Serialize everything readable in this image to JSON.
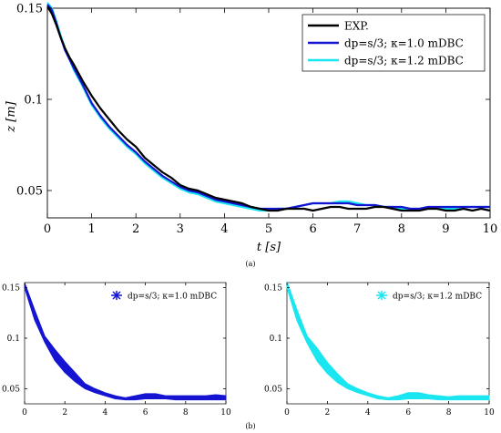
{
  "chart_data": [
    {
      "panel_label": "(a)",
      "type": "line",
      "xlabel": "t [s]",
      "ylabel": "z [m]",
      "xlim": [
        0,
        10
      ],
      "ylim": [
        0.035,
        0.15
      ],
      "x_ticks": [
        0,
        1,
        2,
        3,
        4,
        5,
        6,
        7,
        8,
        9,
        10
      ],
      "y_ticks": [
        0.05,
        0.1,
        0.15
      ],
      "y_tick_labels": [
        "0.05",
        "0.1",
        "0.15"
      ],
      "grid": false,
      "legend_position": "top-right",
      "series": [
        {
          "name": "EXP.",
          "color": "#000000",
          "x": [
            0,
            0.1,
            0.2,
            0.3,
            0.4,
            0.5,
            0.6,
            0.8,
            1.0,
            1.2,
            1.4,
            1.6,
            1.8,
            2.0,
            2.2,
            2.4,
            2.6,
            2.8,
            3.0,
            3.2,
            3.4,
            3.6,
            3.8,
            4.0,
            4.2,
            4.4,
            4.6,
            4.8,
            5.0,
            5.2,
            5.4,
            5.6,
            5.8,
            6.0,
            6.2,
            6.4,
            6.6,
            6.8,
            7.0,
            7.2,
            7.4,
            7.6,
            7.8,
            8.0,
            8.2,
            8.4,
            8.6,
            8.8,
            9.0,
            9.2,
            9.4,
            9.6,
            9.8,
            10.0
          ],
          "y": [
            0.151,
            0.147,
            0.141,
            0.134,
            0.128,
            0.123,
            0.119,
            0.11,
            0.102,
            0.095,
            0.089,
            0.083,
            0.078,
            0.074,
            0.068,
            0.064,
            0.06,
            0.057,
            0.053,
            0.051,
            0.05,
            0.048,
            0.046,
            0.045,
            0.044,
            0.043,
            0.041,
            0.04,
            0.039,
            0.039,
            0.04,
            0.04,
            0.04,
            0.039,
            0.04,
            0.041,
            0.041,
            0.04,
            0.04,
            0.04,
            0.041,
            0.041,
            0.04,
            0.039,
            0.039,
            0.039,
            0.04,
            0.04,
            0.039,
            0.039,
            0.04,
            0.039,
            0.04,
            0.039
          ]
        },
        {
          "name": "dp=s/3; κ=1.0 mDBC",
          "color": "#1414d2",
          "x": [
            0,
            0.1,
            0.2,
            0.3,
            0.4,
            0.5,
            0.6,
            0.8,
            1.0,
            1.2,
            1.4,
            1.6,
            1.8,
            2.0,
            2.2,
            2.4,
            2.6,
            2.8,
            3.0,
            3.2,
            3.4,
            3.6,
            3.8,
            4.0,
            4.2,
            4.4,
            4.6,
            4.8,
            5.0,
            5.2,
            5.4,
            5.6,
            5.8,
            6.0,
            6.2,
            6.4,
            6.6,
            6.8,
            7.0,
            7.2,
            7.4,
            7.6,
            7.8,
            8.0,
            8.2,
            8.4,
            8.6,
            8.8,
            9.0,
            9.2,
            9.4,
            9.6,
            9.8,
            10.0
          ],
          "y": [
            0.152,
            0.149,
            0.142,
            0.134,
            0.127,
            0.122,
            0.117,
            0.108,
            0.098,
            0.091,
            0.085,
            0.08,
            0.075,
            0.071,
            0.066,
            0.062,
            0.058,
            0.055,
            0.052,
            0.05,
            0.049,
            0.047,
            0.045,
            0.044,
            0.043,
            0.042,
            0.041,
            0.04,
            0.04,
            0.04,
            0.04,
            0.041,
            0.042,
            0.043,
            0.043,
            0.043,
            0.043,
            0.043,
            0.042,
            0.042,
            0.042,
            0.041,
            0.041,
            0.041,
            0.04,
            0.04,
            0.041,
            0.041,
            0.041,
            0.041,
            0.041,
            0.041,
            0.041,
            0.041
          ]
        },
        {
          "name": "dp=s/3; κ=1.2 mDBC",
          "color": "#19e6f0",
          "x": [
            0,
            0.1,
            0.2,
            0.3,
            0.4,
            0.5,
            0.6,
            0.8,
            1.0,
            1.2,
            1.4,
            1.6,
            1.8,
            2.0,
            2.2,
            2.4,
            2.6,
            2.8,
            3.0,
            3.2,
            3.4,
            3.6,
            3.8,
            4.0,
            4.2,
            4.4,
            4.6,
            4.8,
            5.0,
            5.2,
            5.4,
            5.6,
            5.8,
            6.0,
            6.2,
            6.4,
            6.6,
            6.8,
            7.0,
            7.2,
            7.4,
            7.6,
            7.8,
            8.0,
            8.2,
            8.4,
            8.6,
            8.8,
            9.0,
            9.2,
            9.4,
            9.6,
            9.8,
            10.0
          ],
          "y": [
            0.153,
            0.15,
            0.143,
            0.135,
            0.128,
            0.122,
            0.116,
            0.107,
            0.097,
            0.09,
            0.084,
            0.079,
            0.074,
            0.07,
            0.065,
            0.061,
            0.057,
            0.054,
            0.051,
            0.049,
            0.048,
            0.046,
            0.044,
            0.043,
            0.042,
            0.041,
            0.04,
            0.039,
            0.039,
            0.04,
            0.04,
            0.041,
            0.042,
            0.043,
            0.043,
            0.043,
            0.044,
            0.044,
            0.043,
            0.042,
            0.042,
            0.041,
            0.041,
            0.04,
            0.04,
            0.04,
            0.04,
            0.04,
            0.04,
            0.04,
            0.041,
            0.041,
            0.041,
            0.041
          ]
        }
      ]
    },
    {
      "panel_label": "(b)",
      "type": "area",
      "xlim": [
        0,
        10
      ],
      "ylim": [
        0.035,
        0.155
      ],
      "x_ticks": [
        0,
        2,
        4,
        6,
        8,
        10
      ],
      "y_ticks": [
        0.05,
        0.1,
        0.15
      ],
      "y_tick_labels": [
        "0.05",
        "0.1",
        "0.15"
      ],
      "grid": false,
      "legend_position": "top-right",
      "series": [
        {
          "name": "dp=s/3; κ=1.0 mDBC",
          "color": "#1414d2",
          "x": [
            0,
            0.5,
            1.0,
            1.5,
            2.0,
            2.5,
            3.0,
            3.5,
            4.0,
            4.5,
            5.0,
            5.5,
            6.0,
            6.5,
            7.0,
            7.5,
            8.0,
            8.5,
            9.0,
            9.5,
            10.0
          ],
          "upper": [
            0.155,
            0.128,
            0.102,
            0.089,
            0.077,
            0.066,
            0.055,
            0.05,
            0.046,
            0.043,
            0.041,
            0.043,
            0.045,
            0.045,
            0.043,
            0.043,
            0.043,
            0.043,
            0.043,
            0.044,
            0.043
          ],
          "lower": [
            0.15,
            0.118,
            0.096,
            0.078,
            0.066,
            0.057,
            0.05,
            0.046,
            0.043,
            0.04,
            0.039,
            0.039,
            0.04,
            0.04,
            0.04,
            0.039,
            0.039,
            0.039,
            0.039,
            0.039,
            0.039
          ]
        },
        {
          "name": "dp=s/3; κ=1.2 mDBC",
          "color": "#19e6f0",
          "x": [
            0,
            0.5,
            1.0,
            1.5,
            2.0,
            2.5,
            3.0,
            3.5,
            4.0,
            4.5,
            5.0,
            5.5,
            6.0,
            6.5,
            7.0,
            7.5,
            8.0,
            8.5,
            9.0,
            9.5,
            10.0
          ],
          "upper": [
            0.156,
            0.128,
            0.102,
            0.09,
            0.076,
            0.065,
            0.055,
            0.05,
            0.046,
            0.043,
            0.041,
            0.043,
            0.046,
            0.046,
            0.044,
            0.043,
            0.042,
            0.043,
            0.043,
            0.043,
            0.043
          ],
          "lower": [
            0.15,
            0.117,
            0.095,
            0.077,
            0.065,
            0.056,
            0.05,
            0.046,
            0.043,
            0.04,
            0.039,
            0.039,
            0.04,
            0.04,
            0.04,
            0.039,
            0.039,
            0.039,
            0.039,
            0.039,
            0.039
          ]
        }
      ]
    }
  ]
}
